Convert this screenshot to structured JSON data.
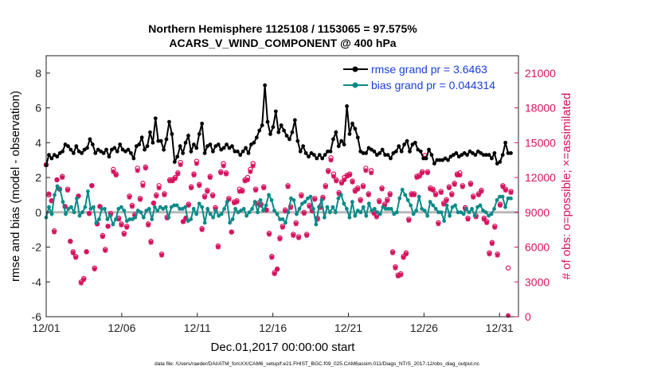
{
  "chart_data": {
    "type": "line",
    "title_line1": "Northern Hemisphere 1125108 / 1153065 = 97.575%",
    "title_line2": "ACARS_V_WIND_COMPONENT @ 400 hPa",
    "xlabel": "Dec.01,2017 00:00:00 start",
    "ylabel_left": "rmse and bias (model - observation)",
    "ylabel_right": "# of obs: o=possible; ×=assimilated",
    "footer": "data file: /Users/raeder/DAI/ATM_forcXX/CAM6_setup/f.e21.FHIST_BGC.f09_025.CAM6assim.011/Diags_NTrS_2017-12/obs_diag_output.nc",
    "x_ticks": [
      "12/01",
      "12/06",
      "12/11",
      "12/16",
      "12/21",
      "12/26",
      "12/31"
    ],
    "x_tick_days": [
      0,
      5,
      10,
      15,
      20,
      25,
      30
    ],
    "xlim": [
      0,
      31.25
    ],
    "ylim_left": [
      -6,
      9
    ],
    "y_ticks_left": [
      -6,
      -4,
      -2,
      0,
      2,
      4,
      6,
      8
    ],
    "ylim_right": [
      0,
      22500
    ],
    "y_ticks_right": [
      0,
      3000,
      6000,
      9000,
      12000,
      15000,
      18000,
      21000
    ],
    "legend": [
      {
        "label": "rmse grand pr = 3.6463",
        "color": "#000000"
      },
      {
        "label": "bias grand pr = 0.044314",
        "color": "#0a8a88"
      }
    ],
    "series": [
      {
        "name": "rmse",
        "color": "#000000",
        "values": [
          2.7,
          3.3,
          3.1,
          3.3,
          3.2,
          3.4,
          3.5,
          3.9,
          3.8,
          3.6,
          3.4,
          3.8,
          3.5,
          3.4,
          3.6,
          3.7,
          4.2,
          3.9,
          3.4,
          3.6,
          3.5,
          3.4,
          3.6,
          3.2,
          3.6,
          3.7,
          3.5,
          3.9,
          3.6,
          3.5,
          3.6,
          3.4,
          3.1,
          3.8,
          3.9,
          4.3,
          3.6,
          3.8,
          4.6,
          4.0,
          5.4,
          4.1,
          4.1,
          3.6,
          4.2,
          5.2,
          4.5,
          2.9,
          3.2,
          3.8,
          3.4,
          4.0,
          4.4,
          3.5,
          3.9,
          3.7,
          4.5,
          5.1,
          3.4,
          3.8,
          3.9,
          3.5,
          3.8,
          3.9,
          3.6,
          3.7,
          3.9,
          3.7,
          3.8,
          3.5,
          3.5,
          3.3,
          3.5,
          3.7,
          3.4,
          3.9,
          4.0,
          4.3,
          4.7,
          5.0,
          7.3,
          5.2,
          4.5,
          4.9,
          5.8,
          4.6,
          5.0,
          4.7,
          4.4,
          4.2,
          4.6,
          5.3,
          4.1,
          3.5,
          3.8,
          3.4,
          3.2,
          3.4,
          3.3,
          3.1,
          3.3,
          3.1,
          3.3,
          3.5,
          3.5,
          4.2,
          4.6,
          3.8,
          4.1,
          3.9,
          6.1,
          4.5,
          5.1,
          4.8,
          4.3,
          3.5,
          3.4,
          3.4,
          3.7,
          3.6,
          3.5,
          3.3,
          3.4,
          3.6,
          3.3,
          3.3,
          3.1,
          3.4,
          3.5,
          3.8,
          3.5,
          3.9,
          4.1,
          3.5,
          3.9,
          4.0,
          3.6,
          3.5,
          3.1,
          3.1,
          3.6,
          3.3,
          2.8,
          3.0,
          3.0,
          3.0,
          3.1,
          3.0,
          3.2,
          3.3,
          3.4,
          3.2,
          3.3,
          3.4,
          3.3,
          3.5,
          3.4,
          3.3,
          3.5,
          3.4,
          3.3,
          3.3,
          3.3,
          3.1,
          3.4,
          2.8,
          2.9,
          3.3,
          4.0,
          3.4,
          3.4
        ]
      },
      {
        "name": "bias",
        "color": "#0a8a88",
        "values": [
          -0.3,
          0.3,
          -0.1,
          1.0,
          1.5,
          1.3,
          0.6,
          -0.1,
          0.2,
          0.3,
          0.0,
          0.8,
          -0.2,
          0.0,
          0.3,
          1.2,
          0.2,
          0.3,
          -0.6,
          -0.4,
          0.2,
          0.2,
          -0.4,
          -0.2,
          -0.7,
          -0.4,
          0.2,
          0.3,
          0.1,
          -0.5,
          -0.4,
          -0.4,
          -0.3,
          0.1,
          0.0,
          -0.3,
          0.1,
          0.2,
          -0.4,
          0.3,
          0.1,
          0.3,
          0.2,
          0.3,
          -0.3,
          0.3,
          0.4,
          0.4,
          0.2,
          0.2,
          0.3,
          -0.5,
          -0.4,
          0.2,
          -0.1,
          0.5,
          0.3,
          -0.6,
          0.2,
          -0.1,
          -0.3,
          0.1,
          -0.2,
          -0.1,
          0.2,
          0.6,
          -0.6,
          -0.4,
          0.2,
          0.0,
          0.1,
          0.2,
          -0.2,
          0.0,
          0.2,
          0.6,
          0.0,
          0.7,
          0.1,
          0.4,
          1.0,
          0.7,
          0.1,
          -0.1,
          -0.4,
          -0.4,
          -0.6,
          0.0,
          0.8,
          0.7,
          -0.1,
          0.2,
          0.5,
          0.6,
          0.8,
          0.9,
          0.2,
          -0.7,
          0.3,
          0.7,
          -0.3,
          0.3,
          0.0,
          0.3,
          0.0,
          0.8,
          1.0,
          0.5,
          0.2,
          -0.3,
          0.6,
          -0.2,
          0.1,
          0.0,
          0.3,
          -0.2,
          0.5,
          0.1,
          0.2,
          0.0,
          -0.1,
          0.3,
          0.2,
          0.2,
          0.2,
          -0.1,
          0.0,
          0.8,
          1.3,
          1.0,
          0.7,
          0.4,
          -0.1,
          0.1,
          0.9,
          0.2,
          0.1,
          -0.2,
          0.6,
          0.4,
          0.2,
          0.0,
          0.0,
          -0.5,
          0.4,
          -0.2,
          0.3,
          0.4,
          0.0,
          0.0,
          -0.1,
          0.2,
          0.0,
          0.2,
          -0.2,
          0.3,
          0.4,
          0.1,
          0.0,
          -0.2,
          -0.1,
          0.2,
          0.7,
          0.9,
          0.9,
          0.3,
          0.8,
          0.8
        ]
      },
      {
        "name": "obs possible",
        "color": "#d6125e",
        "axis": "right",
        "values": [
          13100,
          10500,
          10000,
          7400,
          11800,
          11000,
          12100,
          9500,
          11000,
          6500,
          5600,
          5200,
          10400,
          3000,
          3300,
          5600,
          8900,
          11300,
          4200,
          8000,
          9500,
          7000,
          5800,
          7800,
          8900,
          12700,
          12300,
          8500,
          8000,
          7200,
          7800,
          10400,
          9600,
          8800,
          12800,
          10200,
          11500,
          12900,
          8000,
          6500,
          9800,
          10500,
          11300,
          5400,
          10600,
          8600,
          11800,
          11800,
          12000,
          12400,
          13300,
          8200,
          8500,
          9700,
          11200,
          12300,
          13400,
          11400,
          7600,
          10400,
          10900,
          12100,
          10500,
          9400,
          6100,
          12500,
          13200,
          12400,
          10200,
          7300,
          9900,
          10000,
          11000,
          10900,
          11800,
          12000,
          12700,
          13200,
          11000,
          9800,
          9700,
          11200,
          9200,
          7200,
          5200,
          3800,
          4100,
          6800,
          7800,
          9200,
          11300,
          9500,
          7100,
          8100,
          6900,
          10500,
          9000,
          7100,
          9600,
          9200,
          10200,
          8500,
          9500,
          10300,
          11300,
          12600,
          13700,
          12300,
          11800,
          10700,
          11600,
          12000,
          12200,
          12300,
          11700,
          10900,
          11100,
          10100,
          11300,
          12800,
          10600,
          12600,
          9000,
          8700,
          10000,
          11100,
          9700,
          10100,
          10600,
          5600,
          4300,
          3600,
          3700,
          5200,
          5500,
          8400,
          10600,
          10600,
          12100,
          12200,
          12500,
          13900,
          12500,
          11100,
          11000,
          10600,
          8100,
          10800,
          9800,
          10100,
          11200,
          10600,
          11500,
          12300,
          12400,
          11300,
          9400,
          8500,
          11500,
          10400,
          8700,
          10600,
          10900,
          8500,
          8200,
          5500,
          6400,
          7800,
          5400,
          9700,
          11300,
          11000,
          4200,
          10800
        ]
      },
      {
        "name": "obs assimilated",
        "color": "#d6125e",
        "axis": "right",
        "values": [
          13100,
          10600,
          10000,
          7300,
          11800,
          11000,
          12000,
          9500,
          10900,
          6500,
          5500,
          5100,
          10400,
          2900,
          3200,
          5600,
          8900,
          11300,
          4100,
          8000,
          9500,
          6900,
          5700,
          7800,
          8800,
          12500,
          12200,
          8400,
          7900,
          7100,
          7700,
          10300,
          9500,
          8700,
          12600,
          10100,
          11300,
          12800,
          7900,
          6400,
          9800,
          10400,
          11100,
          5300,
          10500,
          8500,
          11700,
          11700,
          11900,
          12300,
          13100,
          8200,
          8500,
          9600,
          11100,
          12200,
          13200,
          11300,
          7500,
          10300,
          10800,
          12000,
          10400,
          9300,
          6000,
          12400,
          13000,
          12300,
          10100,
          7300,
          9800,
          9900,
          10800,
          10800,
          11700,
          11800,
          12500,
          13000,
          10900,
          9700,
          9600,
          11100,
          9200,
          7100,
          5100,
          3700,
          4100,
          6700,
          7700,
          9100,
          11200,
          9400,
          7000,
          8000,
          6800,
          10400,
          8900,
          7000,
          9500,
          9100,
          10100,
          8400,
          9400,
          10200,
          11200,
          12500,
          13500,
          12100,
          11700,
          10600,
          11500,
          11800,
          12100,
          12200,
          11600,
          10800,
          11000,
          10000,
          11200,
          12600,
          10500,
          12400,
          8900,
          8600,
          9900,
          11000,
          9600,
          10000,
          10500,
          5500,
          4200,
          3500,
          3600,
          5100,
          5400,
          8300,
          10500,
          10500,
          12000,
          12100,
          12400,
          13700,
          12400,
          11000,
          10900,
          10500,
          8000,
          10700,
          9700,
          10000,
          11100,
          10500,
          11400,
          12200,
          12200,
          11200,
          9300,
          8400,
          11400,
          10300,
          8600,
          10500,
          10800,
          8400,
          8100,
          5400,
          6300,
          7700,
          5300,
          9600,
          11200,
          10900,
          100,
          10700
        ]
      }
    ]
  }
}
